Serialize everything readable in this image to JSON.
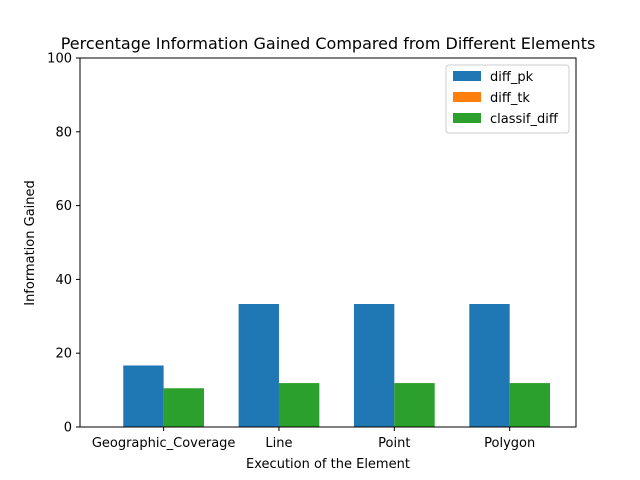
{
  "chart_data": {
    "type": "bar",
    "title": "Percentage Information Gained Compared from Different Elements",
    "xlabel": "Execution of the Element",
    "ylabel": "Information Gained",
    "categories": [
      "Geographic_Coverage",
      "Line",
      "Point",
      "Polygon"
    ],
    "series": [
      {
        "name": "diff_pk",
        "color": "#1f77b4",
        "values": [
          16.67,
          33.33,
          33.33,
          33.33
        ]
      },
      {
        "name": "diff_tk",
        "color": "#ff7f0e",
        "values": [
          0,
          0,
          0,
          0
        ]
      },
      {
        "name": "classif_diff",
        "color": "#2ca02c",
        "values": [
          10.5,
          11.9,
          11.9,
          11.9
        ]
      }
    ],
    "ylim": [
      0,
      100
    ],
    "yticks": [
      "0",
      "20",
      "40",
      "60",
      "80",
      "100"
    ],
    "grid": false,
    "legend_position": "top-right"
  }
}
